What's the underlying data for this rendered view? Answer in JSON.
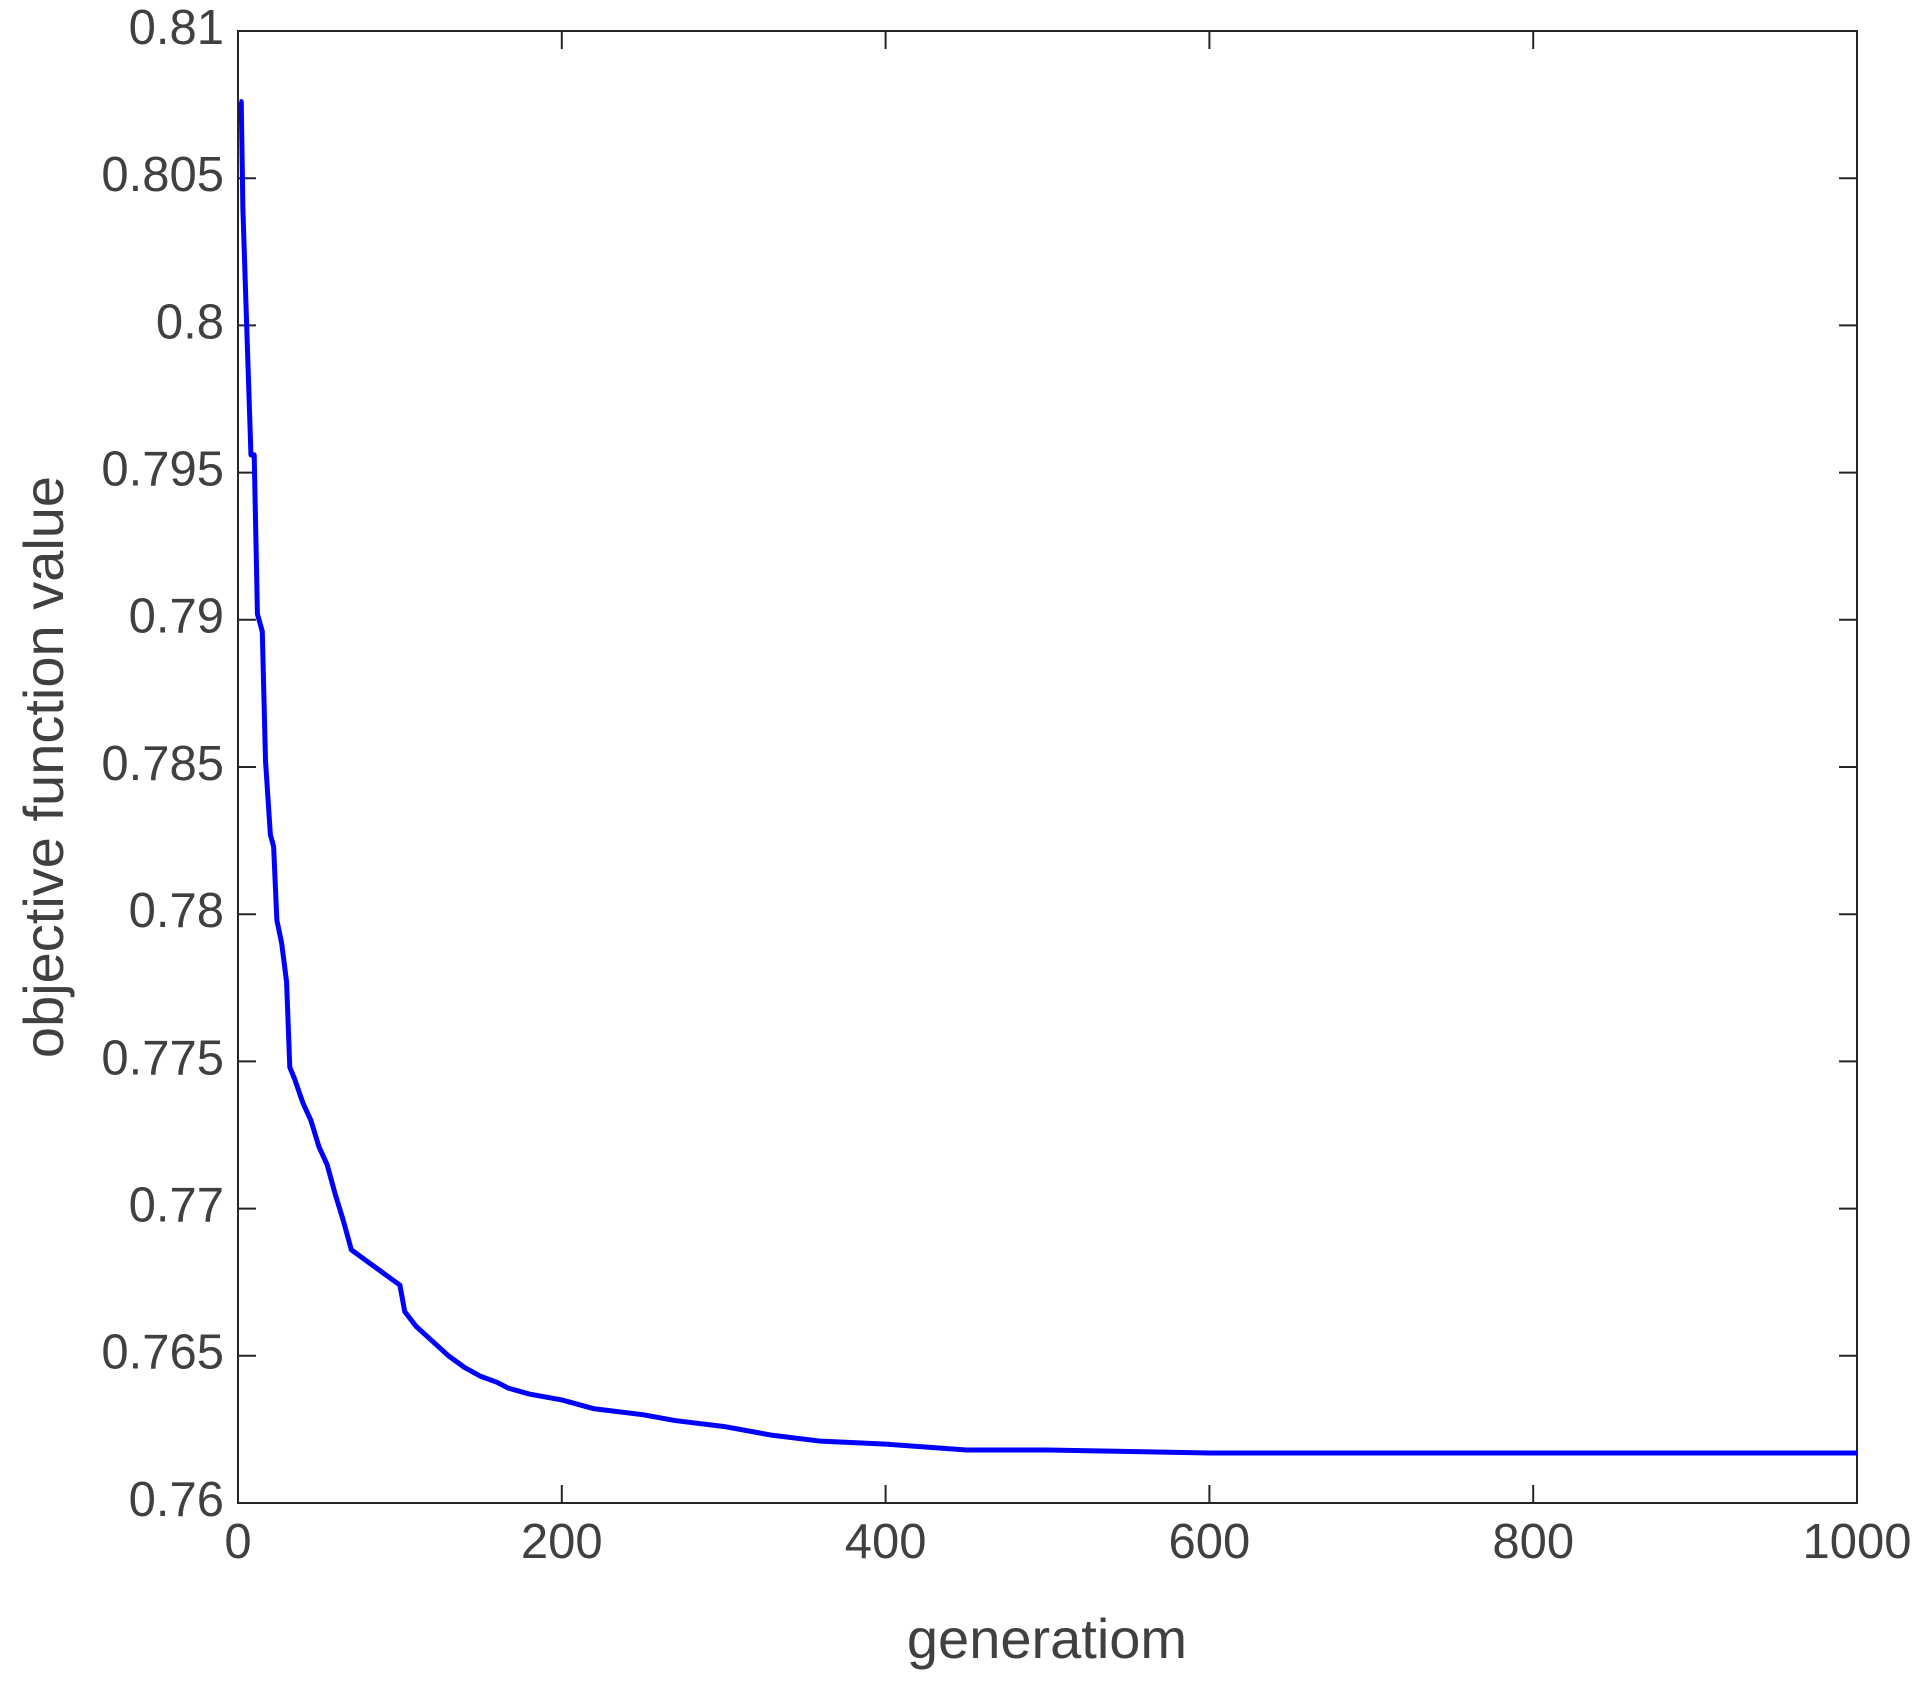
{
  "chart_data": {
    "type": "line",
    "x_label": "generatiom",
    "y_label": "objective function value",
    "x": [
      1,
      2,
      3,
      5,
      8,
      10,
      12,
      15,
      17,
      20,
      22,
      24,
      27,
      30,
      32,
      35,
      40,
      45,
      50,
      55,
      60,
      65,
      70,
      80,
      90,
      100,
      103,
      110,
      120,
      130,
      140,
      150,
      160,
      167,
      180,
      200,
      220,
      250,
      270,
      300,
      330,
      360,
      400,
      450,
      500,
      600,
      1000
    ],
    "series": [
      {
        "color": "#0000ff",
        "values": [
          0.8076,
          0.8076,
          0.804,
          0.8006,
          0.7956,
          0.7956,
          0.7902,
          0.7896,
          0.7852,
          0.7827,
          0.7823,
          0.7798,
          0.779,
          0.7777,
          0.7748,
          0.7744,
          0.7736,
          0.773,
          0.7721,
          0.7715,
          0.7705,
          0.7696,
          0.7686,
          0.7682,
          0.7678,
          0.7674,
          0.7665,
          0.766,
          0.7655,
          0.765,
          0.7646,
          0.7643,
          0.7641,
          0.7639,
          0.7637,
          0.7635,
          0.7632,
          0.763,
          0.7628,
          0.7626,
          0.7623,
          0.7621,
          0.762,
          0.7618,
          0.7618,
          0.7617,
          0.7617
        ]
      }
    ],
    "xlim": [
      0,
      1000
    ],
    "xticks": [
      0,
      200,
      400,
      600,
      800,
      1000
    ],
    "ylim": [
      0.76,
      0.81
    ],
    "yticks": [
      0.76,
      0.765,
      0.77,
      0.775,
      0.78,
      0.785,
      0.79,
      0.795,
      0.8,
      0.805,
      0.81
    ],
    "grid": false
  }
}
